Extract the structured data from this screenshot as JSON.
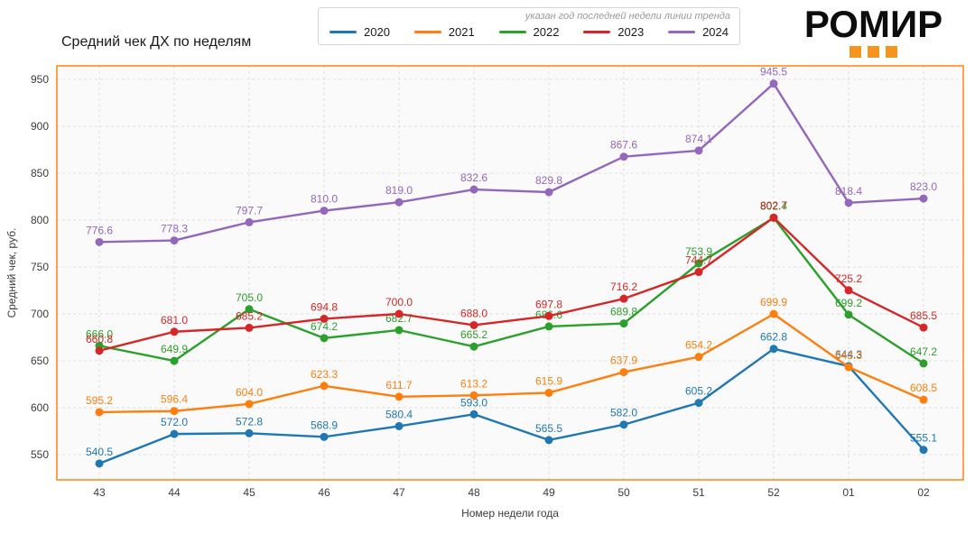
{
  "page": {
    "background": "#ffffff"
  },
  "logo": {
    "text": "РОМИР",
    "accent_color": "#f7941d",
    "square_count": 3
  },
  "chart_data": {
    "type": "line",
    "title": "Средний чек ДХ по неделям",
    "legend_note": "указан год последней недели линии тренда",
    "legend_position": "top-center",
    "xlabel": "Номер недели года",
    "ylabel": "Средний чек, руб.",
    "grid": true,
    "categories": [
      "43",
      "44",
      "45",
      "46",
      "47",
      "48",
      "49",
      "50",
      "51",
      "52",
      "01",
      "02"
    ],
    "yticks": [
      550,
      600,
      650,
      700,
      750,
      800,
      850,
      900,
      950
    ],
    "ylim": [
      520,
      966
    ],
    "colors": {
      "spine": "#ff8c21",
      "plot_background": "#fafafa",
      "gridline": "#dedede",
      "tick_text": "#3c3c3c"
    },
    "series": [
      {
        "name": "2020",
        "color": "#1f77b4",
        "values": [
          540.5,
          572.0,
          572.8,
          568.9,
          580.4,
          593.0,
          565.5,
          582.0,
          605.2,
          662.8,
          644.3,
          555.1
        ]
      },
      {
        "name": "2021",
        "color": "#ff7f0e",
        "values": [
          595.2,
          596.4,
          604.0,
          623.3,
          611.7,
          613.2,
          615.9,
          637.9,
          654.2,
          699.9,
          643.3,
          608.5
        ]
      },
      {
        "name": "2022",
        "color": "#2ca02c",
        "values": [
          666.0,
          649.9,
          705.0,
          674.2,
          682.7,
          665.2,
          686.6,
          689.8,
          753.9,
          802.4,
          699.2,
          647.2
        ]
      },
      {
        "name": "2023",
        "color": "#d62728",
        "values": [
          660.8,
          681.0,
          685.2,
          694.8,
          700.0,
          688.0,
          697.8,
          716.2,
          744.7,
          802.7,
          725.2,
          685.5
        ]
      },
      {
        "name": "2024",
        "color": "#9467bd",
        "values": [
          776.6,
          778.3,
          797.7,
          810.0,
          819.0,
          832.6,
          829.8,
          867.6,
          874.1,
          945.5,
          818.4,
          823.0
        ]
      }
    ]
  }
}
